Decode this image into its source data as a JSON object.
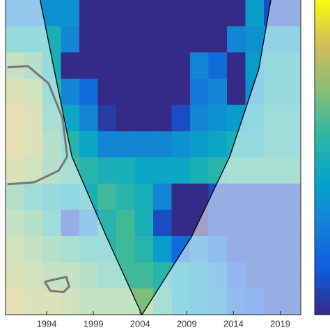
{
  "chart_data": {
    "type": "heatmap",
    "xlim": [
      1989.6,
      2021.2
    ],
    "ylim": [
      0,
      12
    ],
    "xticks": [
      1994,
      1999,
      2004,
      2009,
      2014,
      2019
    ],
    "zlim": [
      0,
      1
    ],
    "colormap": [
      "#352a87",
      "#0f5cdd",
      "#1481d6",
      "#06a4ca",
      "#2eb7a4",
      "#87bf77",
      "#d1bb59",
      "#f9fb0e"
    ],
    "z": [
      [
        0.3,
        0.3,
        0.35,
        0.35,
        0,
        0,
        0,
        0,
        0,
        0,
        0,
        0,
        0,
        0.4,
        0.1,
        0.1
      ],
      [
        0.5,
        0.5,
        0.5,
        0.3,
        0,
        0,
        0,
        0,
        0,
        0,
        0,
        0,
        0.3,
        0.35,
        0.4,
        0.4
      ],
      [
        0.7,
        0.65,
        0.5,
        0,
        0,
        0,
        0,
        0,
        0,
        0,
        0.3,
        0.2,
        0,
        0.4,
        0.5,
        0.5
      ],
      [
        0.8,
        0.75,
        0.55,
        0.3,
        0.2,
        0,
        0,
        0,
        0,
        0,
        0.25,
        0.3,
        0,
        0.35,
        0.5,
        0.5
      ],
      [
        0.85,
        0.8,
        0.6,
        0.45,
        0.3,
        0.05,
        0,
        0,
        0,
        0.1,
        0.3,
        0.35,
        0.4,
        0.45,
        0.55,
        0.55
      ],
      [
        0.85,
        0.8,
        0.65,
        0.55,
        0.45,
        0.3,
        0.3,
        0.3,
        0.3,
        0.35,
        0.4,
        0.45,
        0.5,
        0.5,
        0.55,
        0.55
      ],
      [
        0.8,
        0.75,
        0.65,
        0.6,
        0.55,
        0.5,
        0.5,
        0.45,
        0.45,
        0.45,
        0.5,
        0.55,
        0.6,
        0.6,
        0.6,
        0.6
      ],
      [
        0.65,
        0.55,
        0.5,
        0.45,
        0.5,
        0.6,
        0.55,
        0.5,
        0.3,
        0,
        0,
        0.1,
        0.1,
        0.1,
        0.1,
        0.1
      ],
      [
        0.7,
        0.65,
        0.55,
        0.1,
        0.3,
        0.55,
        0.6,
        0.5,
        0.1,
        0,
        0,
        0.1,
        0.1,
        0.1,
        0.1,
        0.1
      ],
      [
        0.75,
        0.7,
        0.65,
        0.6,
        0.55,
        0.55,
        0.6,
        0.55,
        0.4,
        0.2,
        0.3,
        0.2,
        0.1,
        0.1,
        0.1,
        0.1
      ],
      [
        0.8,
        0.75,
        0.7,
        0.7,
        0.65,
        0.6,
        0.6,
        0.6,
        0.55,
        0.45,
        0.4,
        0.3,
        0.15,
        0.1,
        0.1,
        0.1
      ],
      [
        0.85,
        0.8,
        0.8,
        0.75,
        0.7,
        0.7,
        0.7,
        0.7,
        0.6,
        0.45,
        0.4,
        0.35,
        0.2,
        0.15,
        0.1,
        0.1
      ]
    ],
    "coi": {
      "x": [
        1993.3,
        1994.8,
        1996.7,
        2000.4,
        2004.2,
        2009.5,
        2013.6,
        2016.7,
        2018.0
      ],
      "y": [
        12,
        9.35,
        6.03,
        2.97,
        0,
        2.97,
        6.03,
        9.35,
        12
      ]
    },
    "contours": [
      {
        "x": [
          1989.8,
          1992.0,
          1994.2,
          1995.7,
          1996.2,
          1995.3,
          1992.7,
          1989.8
        ],
        "y": [
          9.43,
          9.48,
          8.82,
          7.49,
          6.03,
          5.5,
          5.05,
          4.97
        ]
      },
      {
        "x": [
          1993.8,
          1996.1,
          1996.4,
          1995.8,
          1994.4,
          1993.8
        ],
        "y": [
          1.26,
          1.44,
          1.07,
          0.86,
          0.91,
          1.26
        ]
      }
    ]
  }
}
